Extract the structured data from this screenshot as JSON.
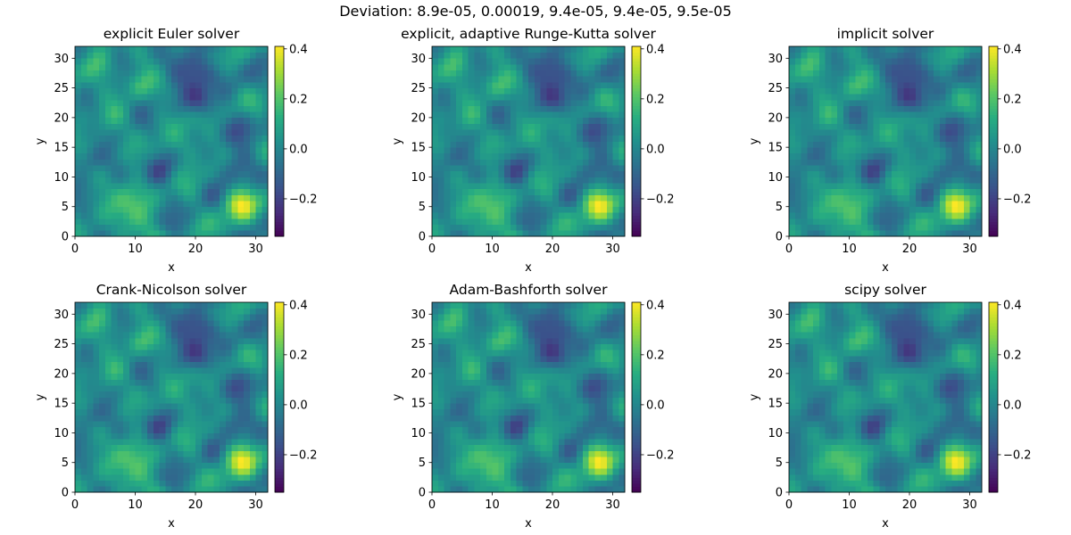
{
  "figure": {
    "suptitle": "Deviation: 8.9e-05, 0.00019, 9.4e-05, 9.4e-05, 9.5e-05"
  },
  "chart_data": [
    {
      "type": "heatmap",
      "title": "explicit Euler solver",
      "xlabel": "x",
      "ylabel": "y",
      "xlim": [
        0,
        32
      ],
      "ylim": [
        0,
        32
      ],
      "xticks": [
        0,
        10,
        20,
        30
      ],
      "yticks": [
        0,
        5,
        10,
        15,
        20,
        25,
        30
      ],
      "colormap": "viridis",
      "clim": [
        -0.35,
        0.41
      ],
      "colorbar_ticks": [
        0.4,
        0.2,
        0.0,
        -0.2
      ],
      "colorbar_tick_labels": [
        "0.4",
        "0.2",
        "0.0",
        "−0.2"
      ],
      "grid": false
    },
    {
      "type": "heatmap",
      "title": "explicit, adaptive Runge-Kutta solver",
      "xlabel": "x",
      "ylabel": "y",
      "xlim": [
        0,
        32
      ],
      "ylim": [
        0,
        32
      ],
      "xticks": [
        0,
        10,
        20,
        30
      ],
      "yticks": [
        0,
        5,
        10,
        15,
        20,
        25,
        30
      ],
      "colormap": "viridis",
      "clim": [
        -0.35,
        0.41
      ],
      "colorbar_ticks": [
        0.4,
        0.2,
        0.0,
        -0.2
      ],
      "colorbar_tick_labels": [
        "0.4",
        "0.2",
        "0.0",
        "−0.2"
      ],
      "grid": false
    },
    {
      "type": "heatmap",
      "title": "implicit solver",
      "xlabel": "x",
      "ylabel": "y",
      "xlim": [
        0,
        32
      ],
      "ylim": [
        0,
        32
      ],
      "xticks": [
        0,
        10,
        20,
        30
      ],
      "yticks": [
        0,
        5,
        10,
        15,
        20,
        25,
        30
      ],
      "colormap": "viridis",
      "clim": [
        -0.35,
        0.41
      ],
      "colorbar_ticks": [
        0.4,
        0.2,
        0.0,
        -0.2
      ],
      "colorbar_tick_labels": [
        "0.4",
        "0.2",
        "0.0",
        "−0.2"
      ],
      "grid": false
    },
    {
      "type": "heatmap",
      "title": "Crank-Nicolson solver",
      "xlabel": "x",
      "ylabel": "y",
      "xlim": [
        0,
        32
      ],
      "ylim": [
        0,
        32
      ],
      "xticks": [
        0,
        10,
        20,
        30
      ],
      "yticks": [
        0,
        5,
        10,
        15,
        20,
        25,
        30
      ],
      "colormap": "viridis",
      "clim": [
        -0.35,
        0.41
      ],
      "colorbar_ticks": [
        0.4,
        0.2,
        0.0,
        -0.2
      ],
      "colorbar_tick_labels": [
        "0.4",
        "0.2",
        "0.0",
        "−0.2"
      ],
      "grid": false
    },
    {
      "type": "heatmap",
      "title": "Adam-Bashforth solver",
      "xlabel": "x",
      "ylabel": "y",
      "xlim": [
        0,
        32
      ],
      "ylim": [
        0,
        32
      ],
      "xticks": [
        0,
        10,
        20,
        30
      ],
      "yticks": [
        0,
        5,
        10,
        15,
        20,
        25,
        30
      ],
      "colormap": "viridis",
      "clim": [
        -0.35,
        0.41
      ],
      "colorbar_ticks": [
        0.4,
        0.2,
        0.0,
        -0.2
      ],
      "colorbar_tick_labels": [
        "0.4",
        "0.2",
        "0.0",
        "−0.2"
      ],
      "grid": false
    },
    {
      "type": "heatmap",
      "title": "scipy solver",
      "xlabel": "x",
      "ylabel": "y",
      "xlim": [
        0,
        32
      ],
      "ylim": [
        0,
        32
      ],
      "xticks": [
        0,
        10,
        20,
        30
      ],
      "yticks": [
        0,
        5,
        10,
        15,
        20,
        25,
        30
      ],
      "colormap": "viridis",
      "clim": [
        -0.35,
        0.41
      ],
      "colorbar_ticks": [
        0.4,
        0.2,
        0.0,
        -0.2
      ],
      "colorbar_tick_labels": [
        "0.4",
        "0.2",
        "0.0",
        "−0.2"
      ],
      "grid": false
    }
  ]
}
